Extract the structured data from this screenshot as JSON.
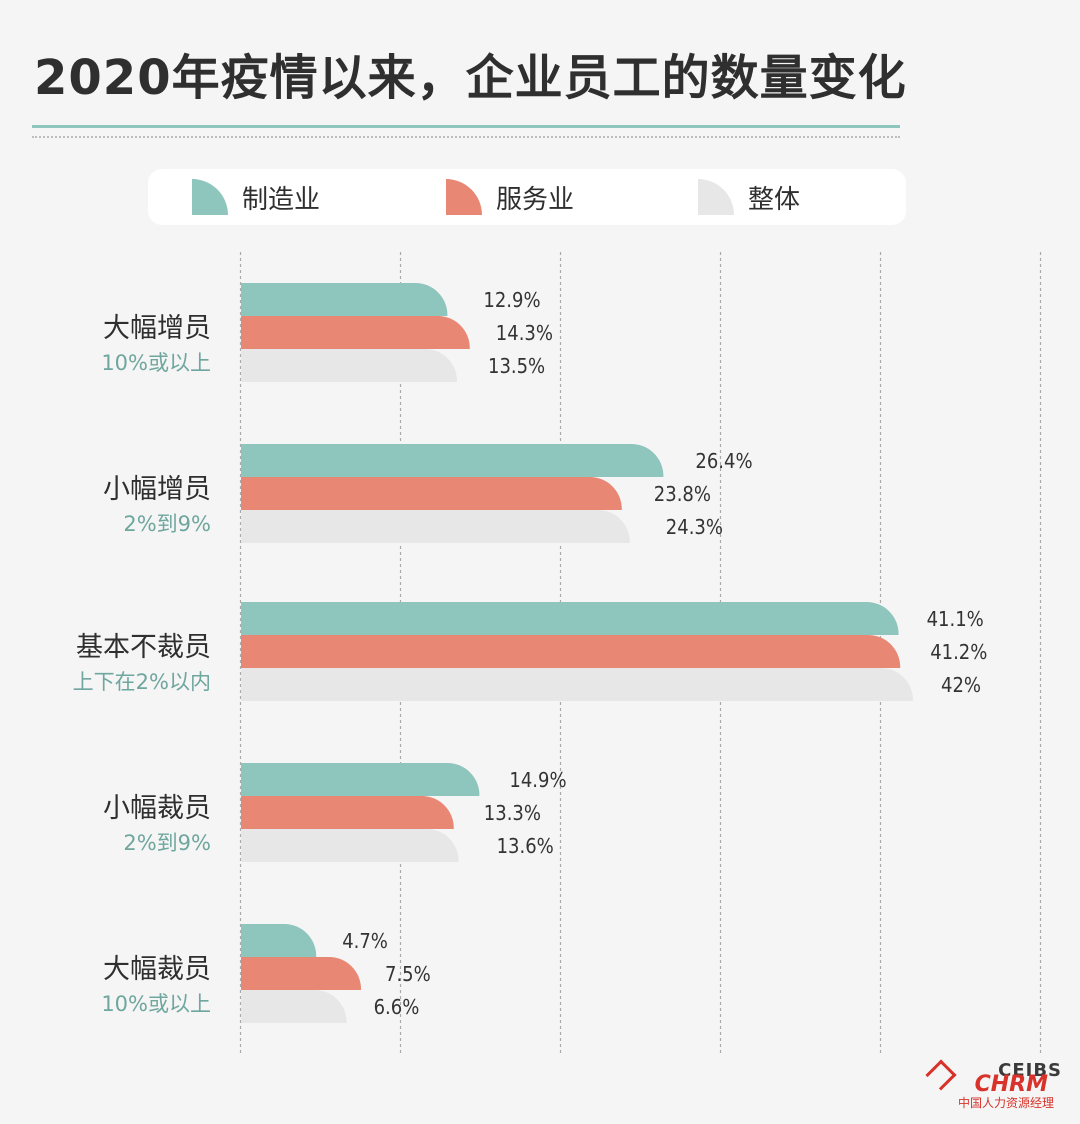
{
  "title": "2020年疫情以来，企业员工的数量变化",
  "legend": [
    {
      "label": "制造业",
      "color": "#8ec5bc"
    },
    {
      "label": "服务业",
      "color": "#e88874"
    },
    {
      "label": "整体",
      "color": "#e7e7e7"
    }
  ],
  "chart_data": {
    "type": "bar",
    "orientation": "horizontal",
    "categories": [
      "大幅增员",
      "小幅增员",
      "基本不裁员",
      "小幅裁员",
      "大幅裁员"
    ],
    "category_notes": [
      "10%或以上",
      "2%到9%",
      "上下在2%以内",
      "2%到9%",
      "10%或以上"
    ],
    "series": [
      {
        "name": "制造业",
        "color": "#8ec5bc",
        "values": [
          12.9,
          26.4,
          41.1,
          14.9,
          4.7
        ],
        "labels": [
          "12.9%",
          "26.4%",
          "41.1%",
          "14.9%",
          "4.7%"
        ]
      },
      {
        "name": "服务业",
        "color": "#e88874",
        "values": [
          14.3,
          23.8,
          41.2,
          13.3,
          7.5
        ],
        "labels": [
          "14.3%",
          "23.8%",
          "41.2%",
          "13.3%",
          "7.5%"
        ]
      },
      {
        "name": "整体",
        "color": "#e7e7e7",
        "values": [
          13.5,
          24.3,
          42,
          13.6,
          6.6
        ],
        "labels": [
          "13.5%",
          "24.3%",
          "42%",
          "13.6%",
          "6.6%"
        ]
      }
    ],
    "xlim": [
      0,
      50
    ],
    "grid": "vertical dashed",
    "legend_position": "top"
  },
  "watermark": {
    "brand": "CEIBS",
    "mark": "CHRM",
    "tagline": "中国人力资源经理"
  }
}
